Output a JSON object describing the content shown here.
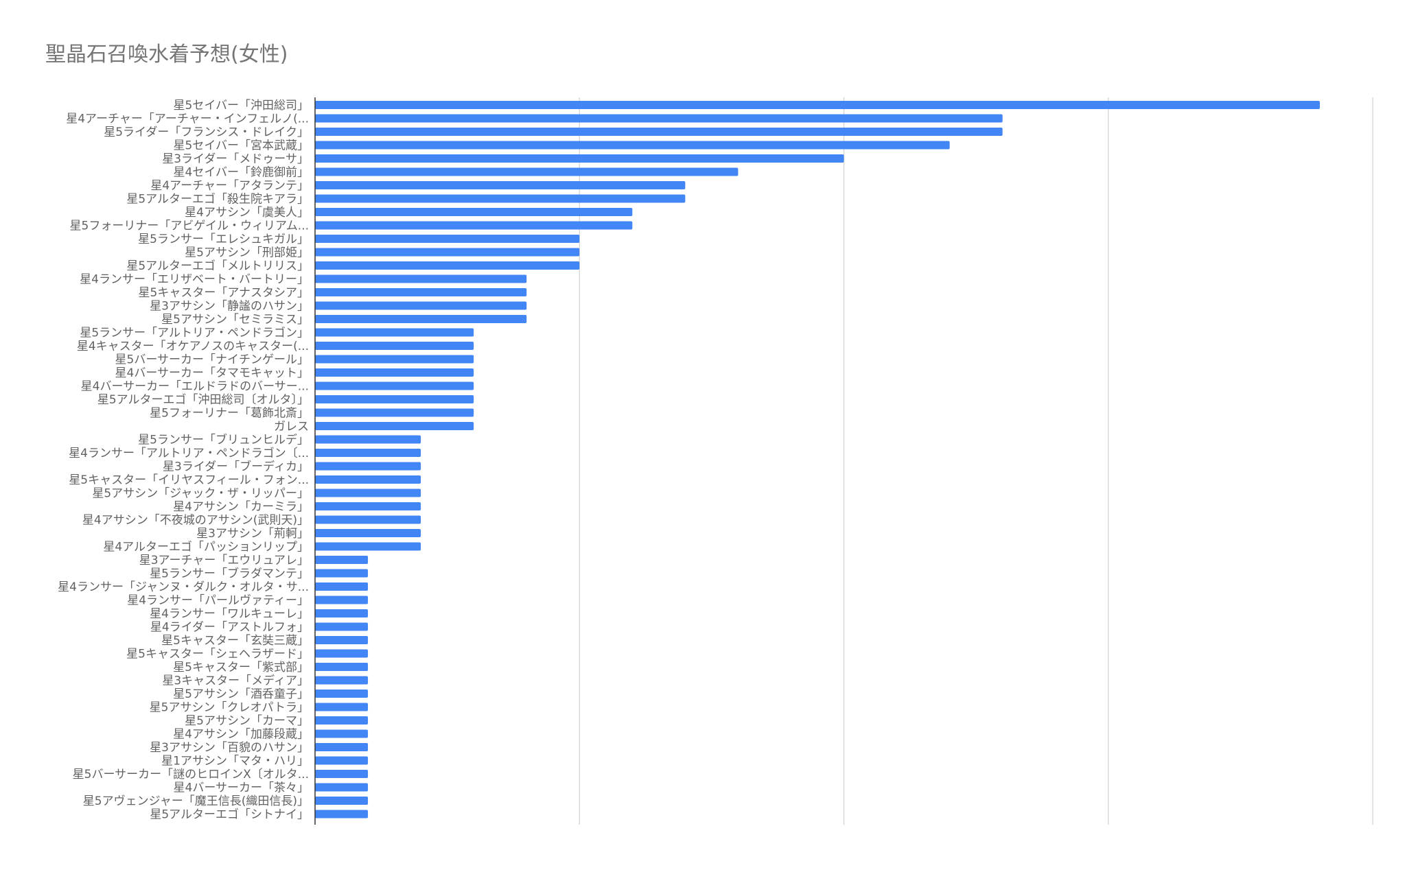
{
  "chart_data": {
    "type": "bar",
    "orientation": "horizontal",
    "title": "聖晶石召喚水着予想(女性)",
    "xlabel": "",
    "ylabel": "",
    "xlim": [
      0,
      20
    ],
    "grid": true,
    "legend": "none",
    "colors": {
      "bar": "#4285f4",
      "grid": "#d0d0d0",
      "axis": "#333333",
      "label": "#616161",
      "title": "#757575"
    },
    "categories": [
      "星5セイバー「沖田総司」",
      "星4アーチャー「アーチャー・インフェルノ(...",
      "星5ライダー「フランシス・ドレイク」",
      "星5セイバー「宮本武蔵」",
      "星3ライダー「メドゥーサ」",
      "星4セイバー「鈴鹿御前」",
      "星4アーチャー「アタランテ」",
      "星5アルターエゴ「殺生院キアラ」",
      "星4アサシン「虞美人」",
      "星5フォーリナー「アビゲイル・ウィリアム...",
      "星5ランサー「エレシュキガル」",
      "星5アサシン「刑部姫」",
      "星5アルターエゴ「メルトリリス」",
      "星4ランサー「エリザベート・バートリー」",
      "星5キャスター「アナスタシア」",
      "星3アサシン「静謐のハサン」",
      "星5アサシン「セミラミス」",
      "星5ランサー「アルトリア・ペンドラゴン」",
      "星4キャスター「オケアノスのキャスター(...",
      "星5バーサーカー「ナイチンゲール」",
      "星4バーサーカー「タマモキャット」",
      "星4バーサーカー「エルドラドのバーサー...",
      "星5アルターエゴ「沖田総司〔オルタ〕」",
      "星5フォーリナー「葛飾北斎」",
      "ガレス",
      "星5ランサー「ブリュンヒルデ」",
      "星4ランサー「アルトリア・ペンドラゴン〔...",
      "星3ライダー「ブーディカ」",
      "星5キャスター「イリヤスフィール・フォン...",
      "星5アサシン「ジャック・ザ・リッパー」",
      "星4アサシン「カーミラ」",
      "星4アサシン「不夜城のアサシン(武則天)」",
      "星3アサシン「荊軻」",
      "星4アルターエゴ「パッションリップ」",
      "星3アーチャー「エウリュアレ」",
      "星5ランサー「ブラダマンテ」",
      "星4ランサー「ジャンヌ・ダルク・オルタ・サ...",
      "星4ランサー「パールヴァティー」",
      "星4ランサー「ワルキューレ」",
      "星4ライダー「アストルフォ」",
      "星5キャスター「玄奘三蔵」",
      "星5キャスター「シェヘラザード」",
      "星5キャスター「紫式部」",
      "星3キャスター「メディア」",
      "星5アサシン「酒呑童子」",
      "星5アサシン「クレオパトラ」",
      "星5アサシン「カーマ」",
      "星4アサシン「加藤段蔵」",
      "星3アサシン「百貌のハサン」",
      "星1アサシン「マタ・ハリ」",
      "星5バーサーカー「謎のヒロインX〔オルタ...",
      "星4バーサーカー「茶々」",
      "星5アヴェンジャー「魔王信長(織田信長)」",
      "星5アルターエゴ「シトナイ」"
    ],
    "values": [
      19,
      13,
      13,
      12,
      10,
      8,
      7,
      7,
      6,
      6,
      5,
      5,
      5,
      4,
      4,
      4,
      4,
      3,
      3,
      3,
      3,
      3,
      3,
      3,
      3,
      2,
      2,
      2,
      2,
      2,
      2,
      2,
      2,
      2,
      1,
      1,
      1,
      1,
      1,
      1,
      1,
      1,
      1,
      1,
      1,
      1,
      1,
      1,
      1,
      1,
      1,
      1,
      1,
      1
    ]
  }
}
